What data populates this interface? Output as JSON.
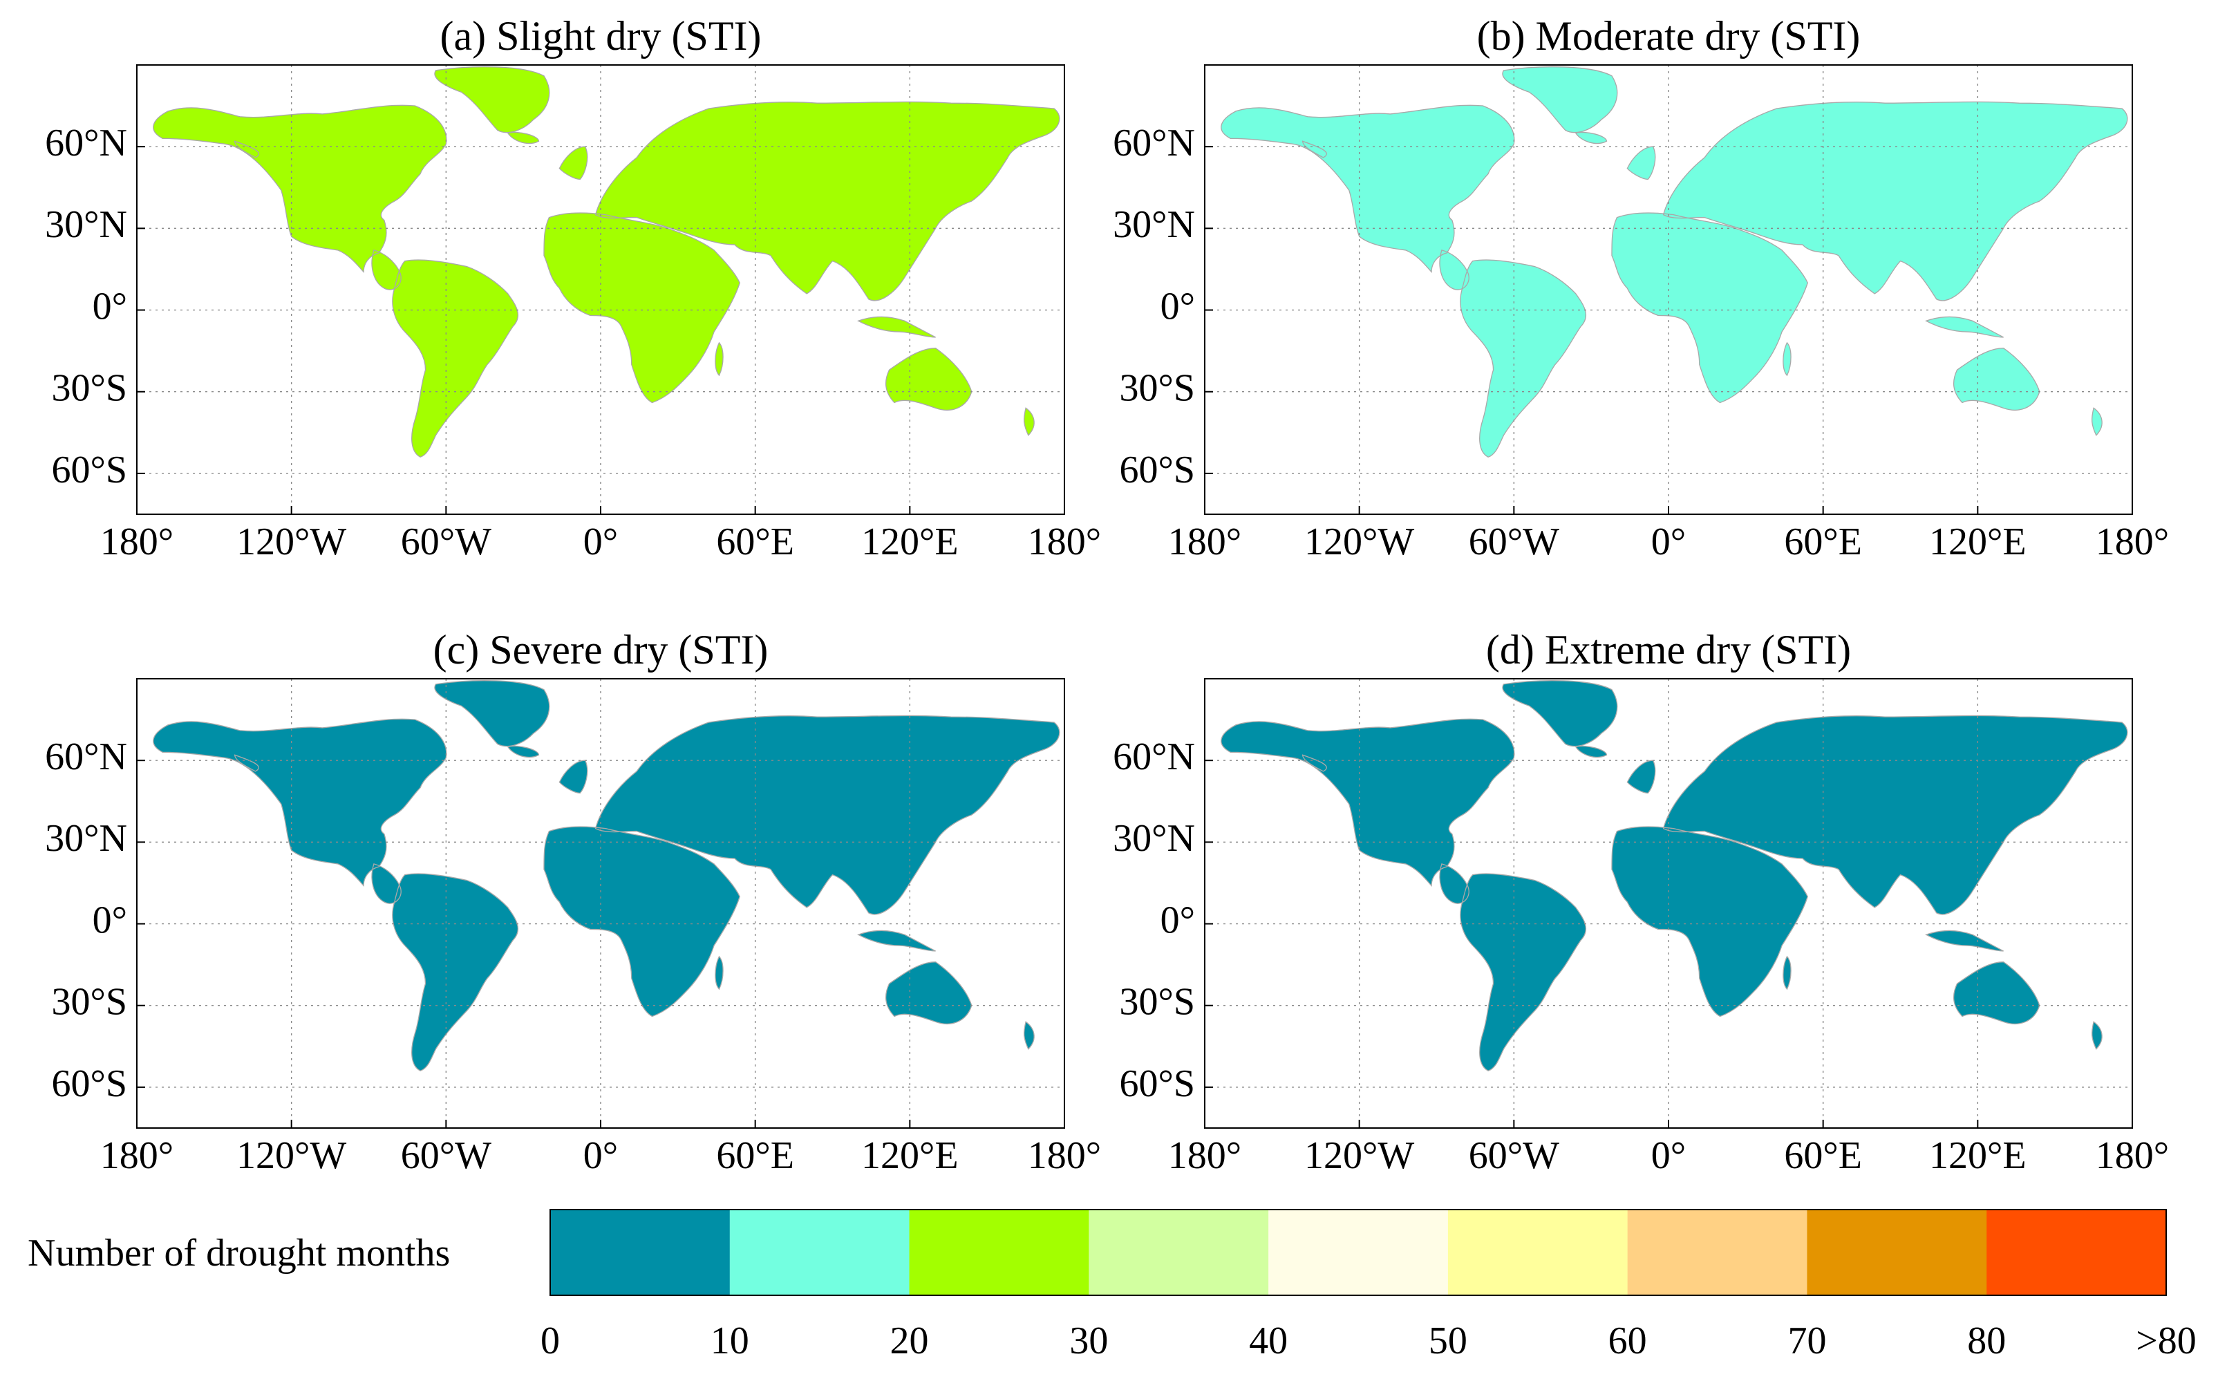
{
  "figure": {
    "panels": [
      {
        "id": "a",
        "title": "(a) Slight dry (STI)",
        "scheme": "slight"
      },
      {
        "id": "b",
        "title": "(b) Moderate dry (STI)",
        "scheme": "moderate"
      },
      {
        "id": "c",
        "title": "(c) Severe dry (STI)",
        "scheme": "severe"
      },
      {
        "id": "d",
        "title": "(d) Extreme dry (STI)",
        "scheme": "extreme"
      }
    ],
    "lat_ticks": [
      "60°N",
      "30°N",
      "0°",
      "30°S",
      "60°S"
    ],
    "lon_ticks": [
      "180°",
      "120°W",
      "60°W",
      "0°",
      "60°E",
      "120°E",
      "180°"
    ],
    "colorbar": {
      "label": "Number of drought months",
      "colors": [
        "#008fa6",
        "#73ffe0",
        "#a3ff00",
        "#d2ffa0",
        "#fffde6",
        "#ffff9c",
        "#ffd184",
        "#e49400",
        "#ff4f00"
      ],
      "tick_labels": [
        "0",
        "10",
        "20",
        "30",
        "40",
        "50",
        "60",
        "70",
        "80",
        ">80"
      ]
    },
    "land_outline_color": "#a9a9a9"
  }
}
